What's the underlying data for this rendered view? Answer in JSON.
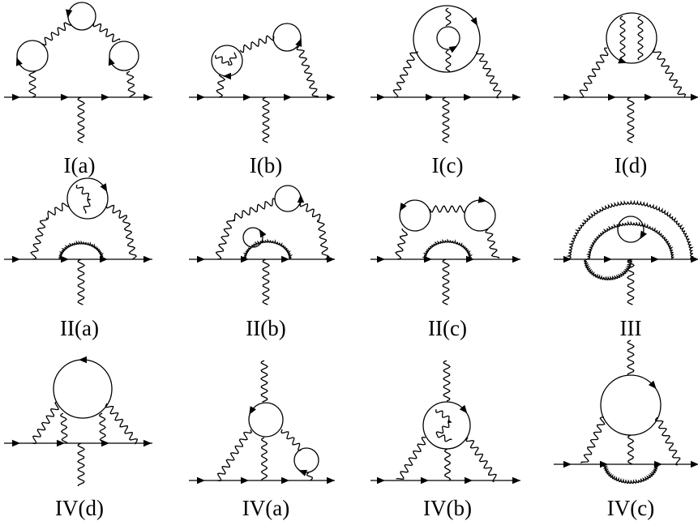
{
  "figure": {
    "diagrams": [
      {
        "id": "I(a)",
        "label": "I(a)"
      },
      {
        "id": "I(b)",
        "label": "I(b)"
      },
      {
        "id": "I(c)",
        "label": "I(c)"
      },
      {
        "id": "I(d)",
        "label": "I(d)"
      },
      {
        "id": "II(a)",
        "label": "II(a)"
      },
      {
        "id": "II(b)",
        "label": "II(b)"
      },
      {
        "id": "II(c)",
        "label": "II(c)"
      },
      {
        "id": "III",
        "label": "III"
      },
      {
        "id": "IV(d)",
        "label": "IV(d)"
      },
      {
        "id": "IV(a)",
        "label": "IV(a)"
      },
      {
        "id": "IV(b)",
        "label": "IV(b)"
      },
      {
        "id": "IV(c)",
        "label": "IV(c)"
      }
    ]
  }
}
